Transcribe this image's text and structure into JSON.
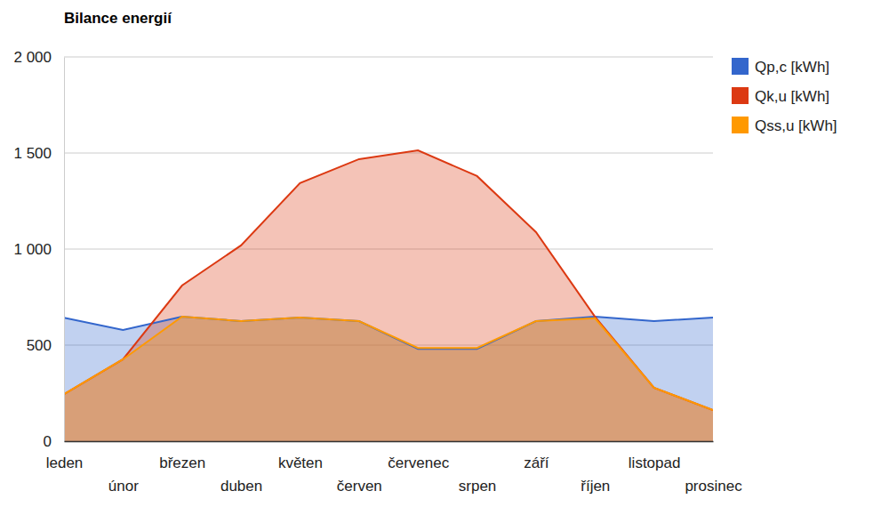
{
  "chart_data": {
    "type": "area",
    "title": "Bilance energií",
    "categories": [
      "leden",
      "únor",
      "březen",
      "duben",
      "květen",
      "červen",
      "červenec",
      "srpen",
      "září",
      "říjen",
      "listopad",
      "prosinec"
    ],
    "series": [
      {
        "name": "Qp,c [kWh]",
        "color": "#3366cc",
        "values": [
          643,
          579,
          648,
          625,
          643,
          625,
          480,
          480,
          625,
          648,
          625,
          643
        ]
      },
      {
        "name": "Qk,u [kWh]",
        "color": "#dc3912",
        "values": [
          245,
          426,
          810,
          1019,
          1343,
          1468,
          1514,
          1380,
          1088,
          648,
          278,
          162
        ]
      },
      {
        "name": "Qss,u [kWh]",
        "color": "#ff9900",
        "values": [
          245,
          426,
          648,
          625,
          643,
          625,
          485,
          485,
          625,
          640,
          278,
          162
        ]
      }
    ],
    "ylim": [
      0,
      2000
    ],
    "yticks": [
      0,
      500,
      {
        "value": 1000,
        "label": "1 000"
      },
      {
        "value": 1500,
        "label": "1 500"
      },
      {
        "value": 2000,
        "label": "2 000"
      }
    ],
    "grid": true,
    "legend": "right"
  }
}
